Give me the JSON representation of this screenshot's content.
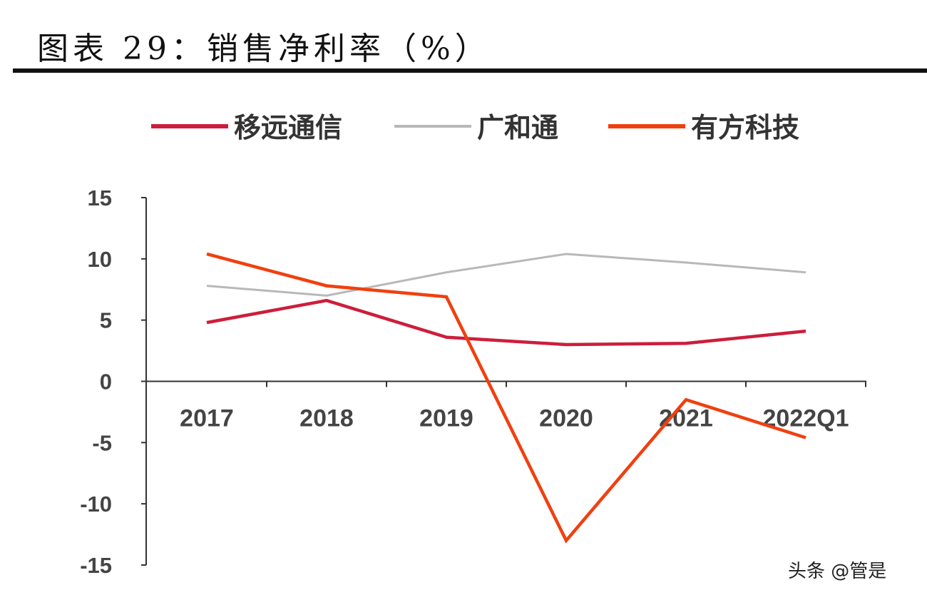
{
  "title": "图表 29：销售净利率（%）",
  "watermark": "头条 @管是",
  "chart_data": {
    "type": "line",
    "title": "图表 29：销售净利率（%）",
    "categories": [
      "2017",
      "2018",
      "2019",
      "2020",
      "2021",
      "2022Q1"
    ],
    "ylim": [
      -15,
      15
    ],
    "yticks": [
      15,
      10,
      5,
      0,
      -5,
      -10,
      -15
    ],
    "grid": false,
    "legend": "top",
    "series": [
      {
        "name": "移远通信",
        "color": "#cc1e3c",
        "values": [
          4.8,
          6.6,
          3.6,
          3.0,
          3.1,
          4.1
        ]
      },
      {
        "name": "广和通",
        "color": "#b8b8bc",
        "values": [
          7.8,
          7.0,
          8.9,
          10.4,
          9.7,
          8.9
        ]
      },
      {
        "name": "有方科技",
        "color": "#f0400f",
        "values": [
          10.4,
          7.8,
          6.9,
          -13.0,
          -1.5,
          -4.6
        ]
      }
    ]
  }
}
